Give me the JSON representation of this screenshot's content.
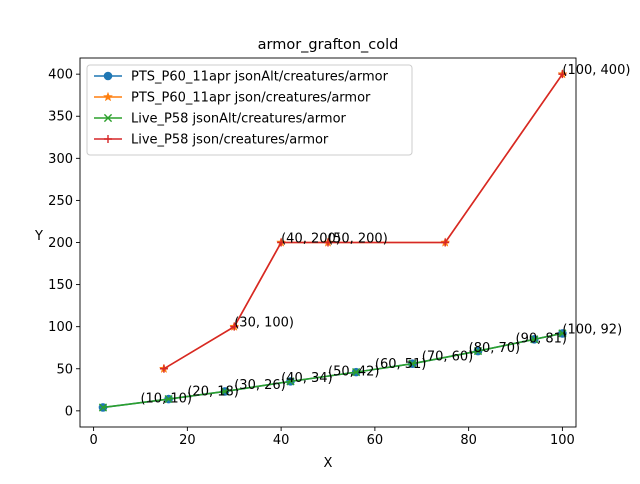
{
  "chart_data": {
    "type": "line",
    "title": "armor_grafton_cold",
    "xlabel": "X",
    "ylabel": "Y",
    "xlim": [
      -2.9,
      102.9
    ],
    "ylim": [
      -19.2,
      419.2
    ],
    "xticks": [
      0,
      20,
      40,
      60,
      80,
      100
    ],
    "yticks": [
      0,
      50,
      100,
      150,
      200,
      250,
      300,
      350,
      400
    ],
    "grid": false,
    "legend_position": "top-left",
    "series": [
      {
        "name": "PTS_P60_11apr jsonAlt/creatures/armor",
        "color": "#1f77b4",
        "marker": "circle",
        "x": [
          2,
          16,
          28,
          42,
          56,
          68,
          82,
          94,
          100
        ],
        "y": [
          4,
          14,
          23,
          35,
          46,
          56,
          71,
          85,
          92
        ]
      },
      {
        "name": "PTS_P60_11apr json/creatures/armor",
        "color": "#ff7f0e",
        "marker": "star",
        "x": [
          15,
          30,
          40,
          50,
          75,
          100
        ],
        "y": [
          50,
          100,
          200,
          200,
          200,
          400
        ]
      },
      {
        "name": "Live_P58 jsonAlt/creatures/armor",
        "color": "#2ca02c",
        "marker": "x",
        "x": [
          2,
          16,
          28,
          42,
          56,
          68,
          82,
          94,
          100
        ],
        "y": [
          4,
          14,
          23,
          35,
          46,
          56,
          71,
          85,
          92
        ]
      },
      {
        "name": "Live_P58 json/creatures/armor",
        "color": "#d62728",
        "marker": "plus",
        "x": [
          15,
          30,
          40,
          50,
          75,
          100
        ],
        "y": [
          50,
          100,
          200,
          200,
          200,
          400
        ]
      }
    ],
    "annotations": [
      {
        "text": "(10, 10)",
        "x": 10,
        "y": 10
      },
      {
        "text": "(20, 18)",
        "x": 20,
        "y": 18
      },
      {
        "text": "(30, 26)",
        "x": 30,
        "y": 26
      },
      {
        "text": "(40, 34)",
        "x": 40,
        "y": 34
      },
      {
        "text": "(50, 42)",
        "x": 50,
        "y": 42
      },
      {
        "text": "(60, 51)",
        "x": 60,
        "y": 51
      },
      {
        "text": "(70, 60)",
        "x": 70,
        "y": 60
      },
      {
        "text": "(80, 70)",
        "x": 80,
        "y": 70
      },
      {
        "text": "(90, 81)",
        "x": 90,
        "y": 81
      },
      {
        "text": "(100, 92)",
        "x": 100,
        "y": 92
      },
      {
        "text": "(30, 100)",
        "x": 30,
        "y": 100
      },
      {
        "text": "(40, 200)",
        "x": 40,
        "y": 200
      },
      {
        "text": "(50, 200)",
        "x": 50,
        "y": 200
      },
      {
        "text": "(100, 400)",
        "x": 100,
        "y": 400
      }
    ]
  }
}
